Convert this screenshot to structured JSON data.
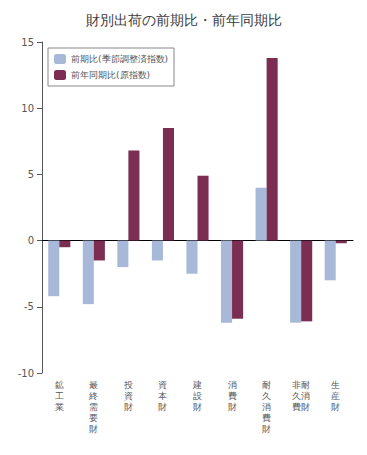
{
  "chart_data": {
    "type": "bar",
    "title": "財別出荷の前期比・前年同期比",
    "categories": [
      "鉱\n工\n業",
      "最\n終\n需\n要\n財",
      "投\n資\n財",
      "資\n本\n財",
      "建\n設\n財",
      "消\n費\n財",
      "耐\n久\n消\n費\n財",
      "非耐\n久消\n費財",
      "生\n産\n財"
    ],
    "series": [
      {
        "name": "前期比(季節調整済指数)",
        "color": "#a8b8d8",
        "values": [
          -4.2,
          -4.8,
          -2.0,
          -1.5,
          -2.5,
          -6.2,
          4.0,
          -6.2,
          -3.0
        ]
      },
      {
        "name": "前年同期比(原指数)",
        "color": "#7b2d52",
        "values": [
          -0.5,
          -1.5,
          6.8,
          8.5,
          4.9,
          -5.9,
          13.8,
          -6.1,
          -0.2
        ]
      }
    ],
    "ylim": [
      -10,
      15
    ],
    "yticks": [
      -10,
      -5,
      0,
      5,
      10,
      15
    ],
    "grid": false,
    "legend": "upper left"
  }
}
